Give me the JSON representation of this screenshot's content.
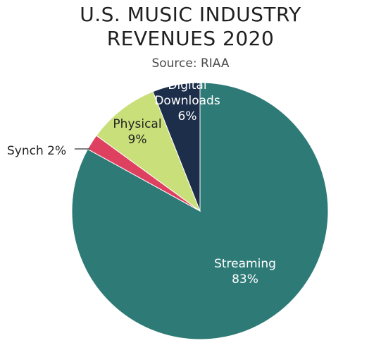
{
  "title_lines": [
    "U.S. MUSIC INDUSTRY",
    "REVENUES 2020"
  ],
  "subtitle": "Source: RIAA",
  "chart_data": {
    "type": "pie",
    "title": "U.S. MUSIC INDUSTRY REVENUES 2020",
    "subtitle": "Source: RIAA",
    "slices": [
      {
        "label_lines": [
          "Digital",
          "Downloads"
        ],
        "pct_label": "6%",
        "value": 6,
        "color": "#1c2e4a",
        "label_color": "#ffffff"
      },
      {
        "label_lines": [
          "Streaming"
        ],
        "pct_label": "83%",
        "value": 83,
        "color": "#2e7a76",
        "label_color": "#ffffff"
      },
      {
        "label_lines": [
          "Synch 2%"
        ],
        "pct_label": "",
        "value": 2,
        "color": "#de4160",
        "label_color": "#222222"
      },
      {
        "label_lines": [
          "Physical"
        ],
        "pct_label": "9%",
        "value": 9,
        "color": "#c9e07a",
        "label_color": "#222222"
      }
    ]
  }
}
